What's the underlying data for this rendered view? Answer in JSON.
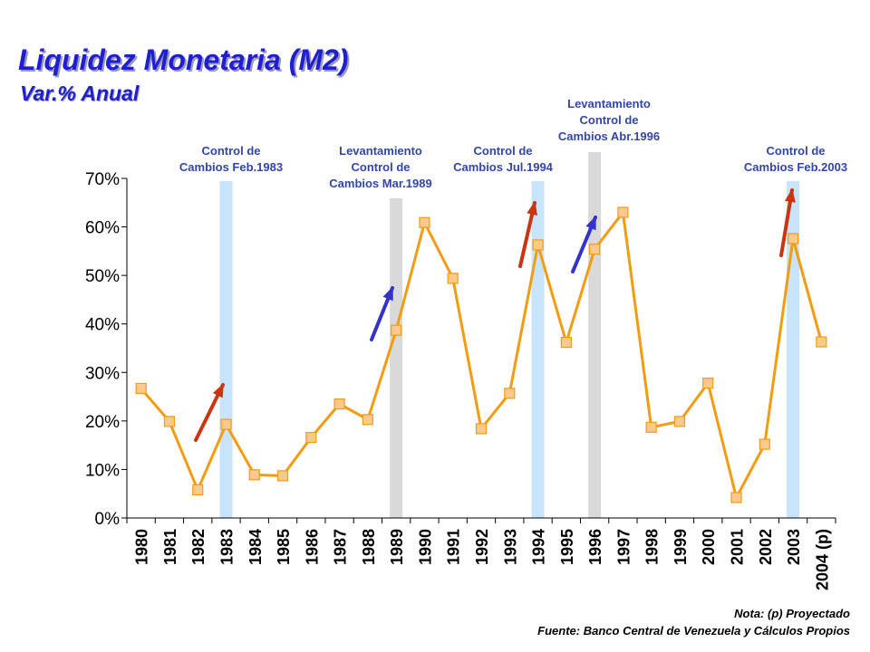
{
  "title": "Liquidez Monetaria (M2)",
  "subtitle": "Var.% Anual",
  "chart_data": {
    "type": "line",
    "categories": [
      "1980",
      "1981",
      "1982",
      "1983",
      "1984",
      "1985",
      "1986",
      "1987",
      "1988",
      "1989",
      "1990",
      "1991",
      "1992",
      "1993",
      "1994",
      "1995",
      "1996",
      "1997",
      "1998",
      "1999",
      "2000",
      "2001",
      "2002",
      "2003",
      "2004 (p)"
    ],
    "values": [
      26.7,
      19.9,
      5.8,
      19.3,
      8.9,
      8.7,
      16.6,
      23.5,
      20.3,
      38.7,
      60.9,
      49.4,
      18.4,
      25.7,
      56.3,
      36.2,
      55.4,
      63.0,
      18.7,
      19.9,
      27.8,
      4.2,
      15.2,
      57.6,
      36.3
    ],
    "ylim": [
      0,
      70
    ],
    "yticks": [
      "0%",
      "10%",
      "20%",
      "30%",
      "40%",
      "50%",
      "60%",
      "70%"
    ],
    "line_color": "#f39c12",
    "marker_color": "#fcc98c",
    "annotations": [
      {
        "year_index": 3,
        "color": "#c8e4fa",
        "arrow": "#cc3311",
        "lines": [
          "Control de",
          "Cambios Feb.1983"
        ]
      },
      {
        "year_index": 9,
        "color": "#d9d9d9",
        "arrow": "#3333cc",
        "lines": [
          "Levantamiento",
          "Control de",
          "Cambios Mar.1989"
        ]
      },
      {
        "year_index": 14,
        "color": "#c8e4fa",
        "arrow": "#cc3311",
        "lines": [
          "Control de",
          "Cambios Jul.1994"
        ]
      },
      {
        "year_index": 16,
        "color": "#d9d9d9",
        "arrow": "#3333cc",
        "lines": [
          "Levantamiento",
          "Control de",
          "Cambios Abr.1996"
        ]
      },
      {
        "year_index": 23,
        "color": "#c8e4fa",
        "arrow": "#cc3311",
        "lines": [
          "Control de",
          "Cambios Feb.2003"
        ]
      }
    ],
    "annotation_text_color": "#3346a8"
  },
  "note": "Nota: (p) Proyectado",
  "source": "Fuente: Banco Central de Venezuela y Cálculos Propios"
}
